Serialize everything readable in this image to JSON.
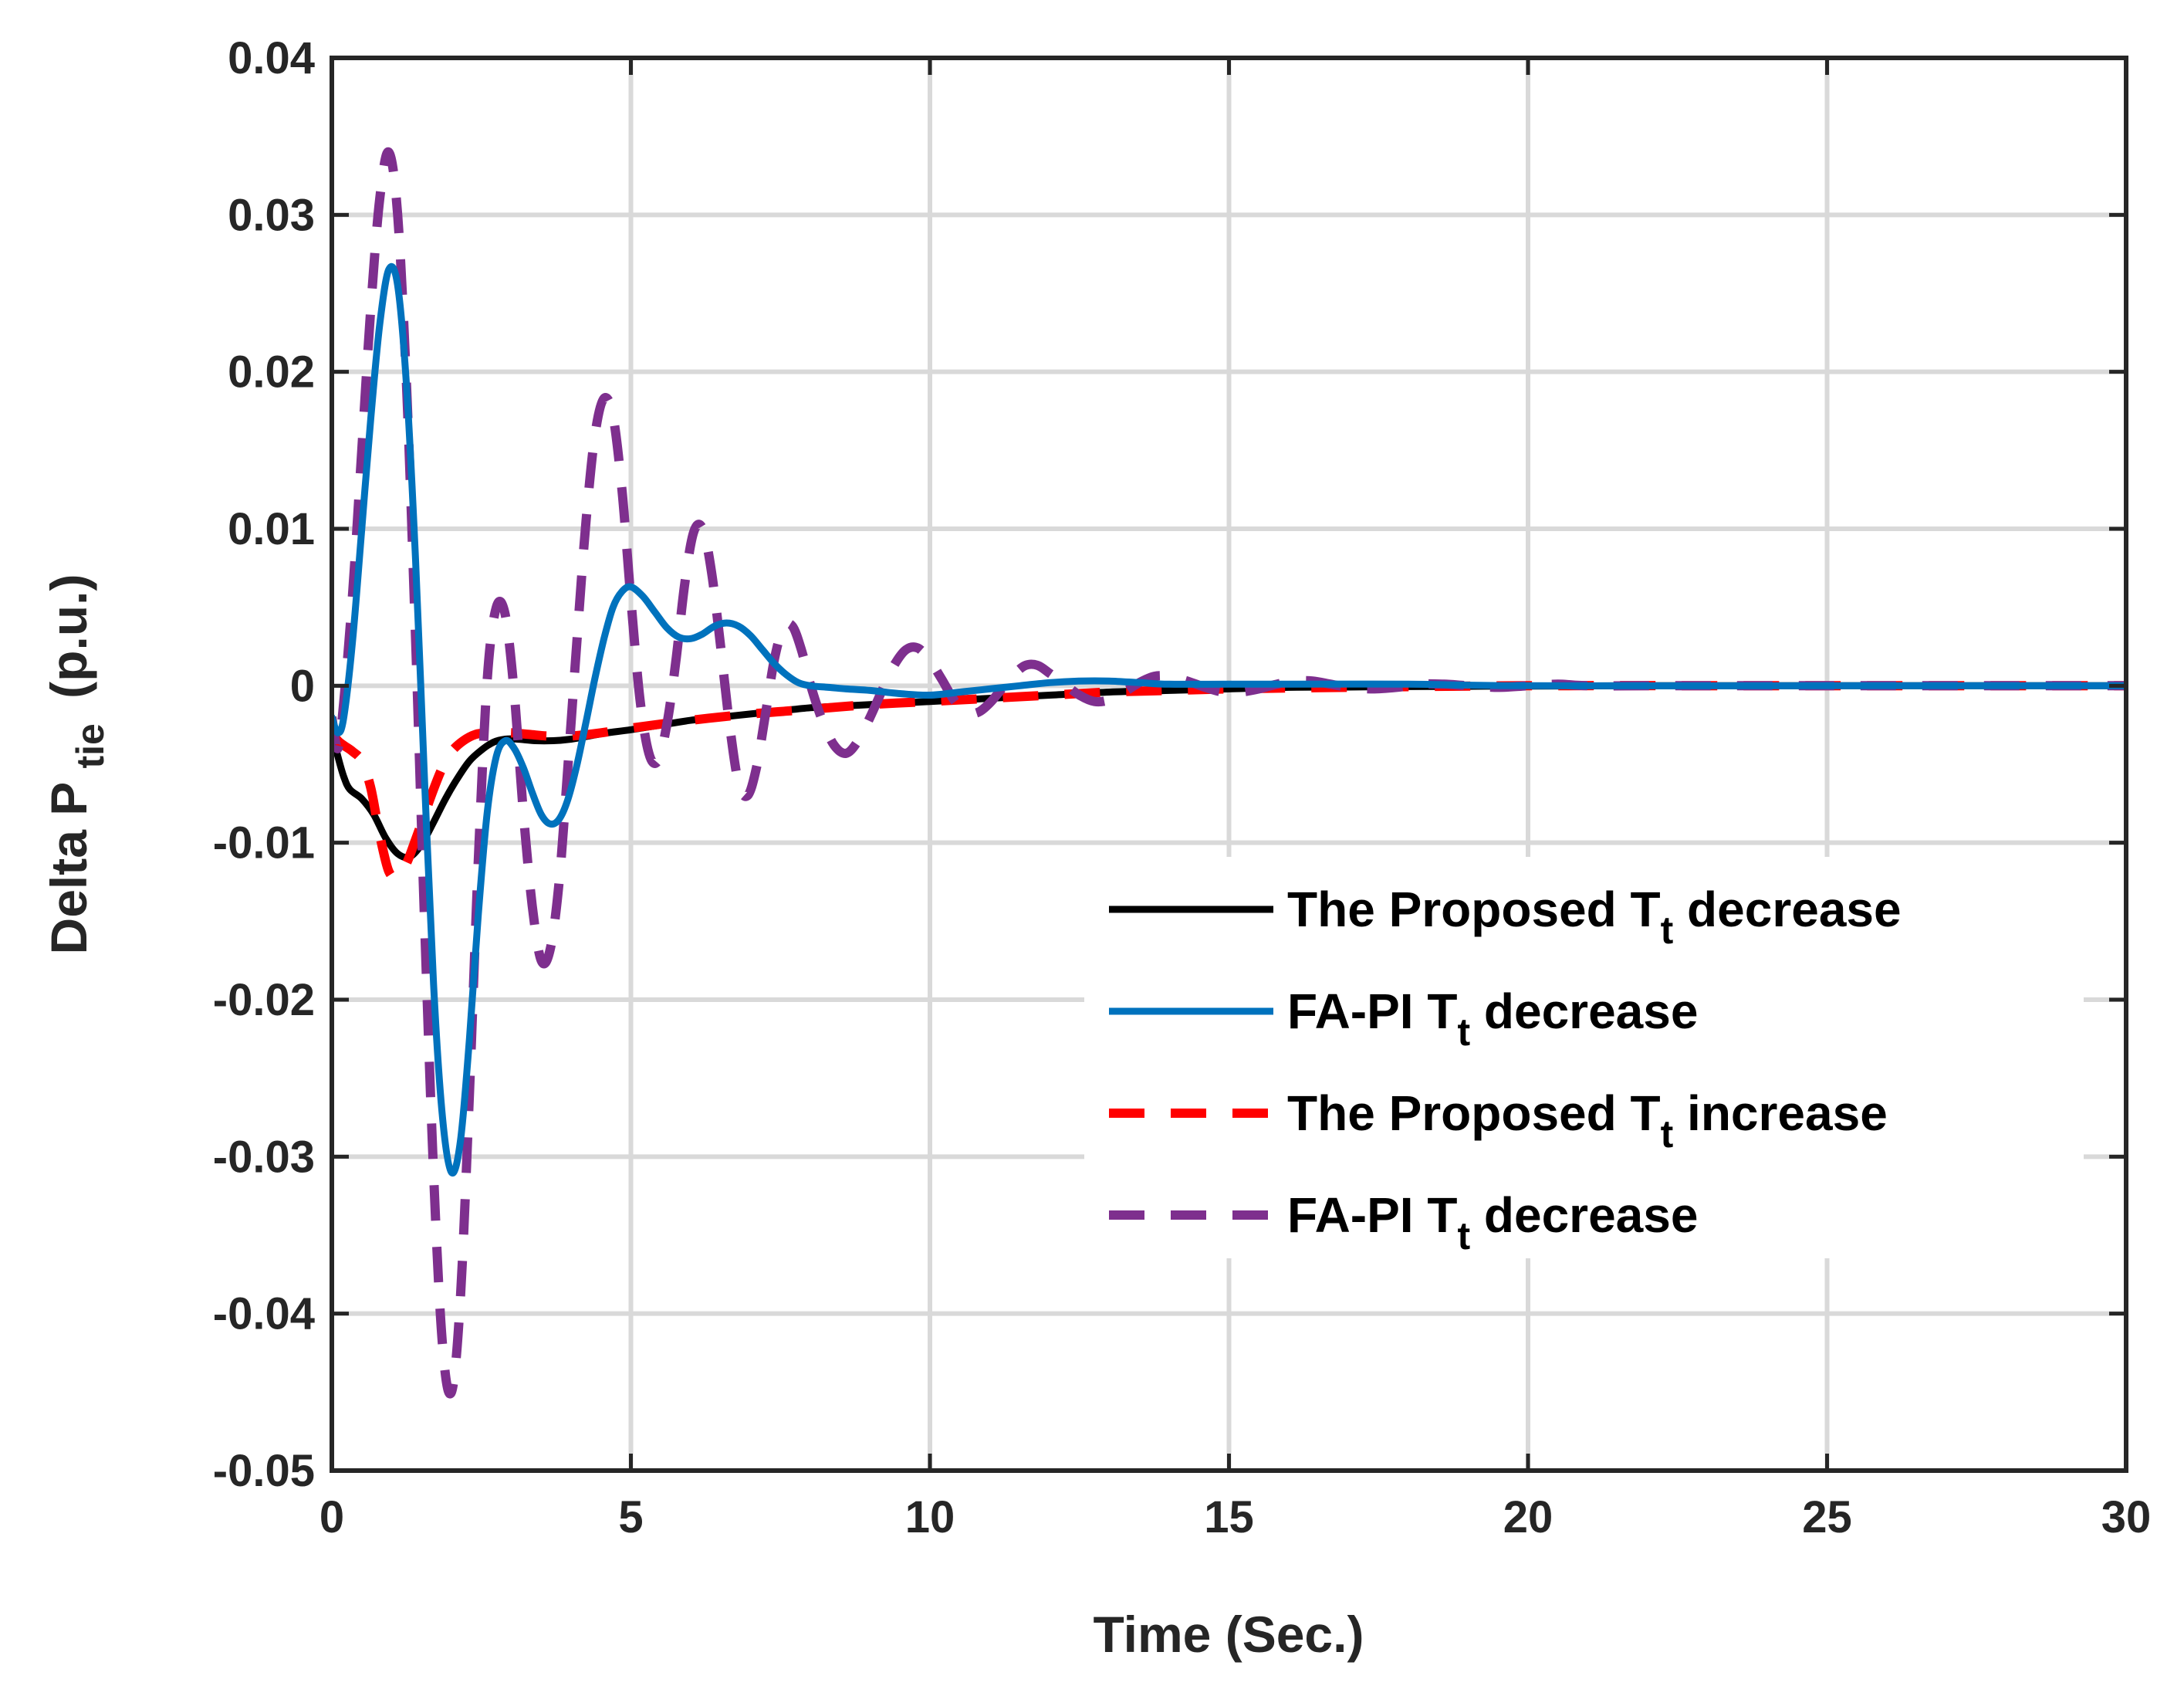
{
  "chart_data": {
    "type": "line",
    "title": "",
    "xlabel": "Time (Sec.)",
    "ylabel": {
      "main": "Delta P",
      "subscript": "tie",
      "suffix": "(p.u.)"
    },
    "xlim": [
      0,
      30
    ],
    "ylim": [
      -0.05,
      0.04
    ],
    "xticks": [
      0,
      5,
      10,
      15,
      20,
      25,
      30
    ],
    "xtick_labels": [
      "0",
      "5",
      "10",
      "15",
      "20",
      "25",
      "30"
    ],
    "yticks": [
      -0.05,
      -0.04,
      -0.03,
      -0.02,
      -0.01,
      0,
      0.01,
      0.02,
      0.03,
      0.04
    ],
    "ytick_labels": [
      "-0.05",
      "-0.04",
      "-0.03",
      "-0.02",
      "-0.01",
      "0",
      "0.01",
      "0.02",
      "0.03",
      "0.04"
    ],
    "grid": true,
    "legend_position": "center-right",
    "series": [
      {
        "name": "The Proposed T_t decrease",
        "legend": {
          "pre": "The Proposed T",
          "sub": "t",
          "post": " decrease"
        },
        "color": "#000000",
        "style": "solid",
        "x": [
          0,
          0.1,
          0.2,
          0.3,
          0.5,
          0.7,
          0.9,
          1.1,
          1.3,
          1.5,
          1.7,
          1.9,
          2.1,
          2.3,
          2.5,
          2.7,
          2.9,
          3.1,
          3.4,
          3.7,
          4.0,
          4.3,
          4.6,
          5,
          5.5,
          6,
          6.5,
          7,
          7.5,
          8,
          8.5,
          9,
          9.5,
          10,
          11,
          12,
          13,
          14,
          15,
          16,
          17,
          18,
          20,
          22,
          25,
          30
        ],
        "y": [
          -0.003,
          -0.0045,
          -0.0058,
          -0.0066,
          -0.0072,
          -0.0082,
          -0.0097,
          -0.0107,
          -0.0109,
          -0.0101,
          -0.0087,
          -0.0072,
          -0.0059,
          -0.0048,
          -0.0041,
          -0.0036,
          -0.0034,
          -0.0034,
          -0.0035,
          -0.0035,
          -0.0034,
          -0.0032,
          -0.003,
          -0.0028,
          -0.0025,
          -0.0022,
          -0.002,
          -0.0018,
          -0.0016,
          -0.0014,
          -0.0013,
          -0.0012,
          -0.0011,
          -0.001,
          -0.0008,
          -0.0006,
          -0.0004,
          -0.0003,
          -0.0002,
          -0.0001,
          -8e-05,
          -5e-05,
          -2e-05,
          0,
          0,
          0
        ]
      },
      {
        "name": "FA-PI T_t decrease",
        "legend": {
          "pre": "FA-PI T",
          "sub": "t",
          "post": " decrease"
        },
        "color": "#0072BD",
        "style": "solid",
        "x": [
          0,
          0.1,
          0.2,
          0.35,
          0.5,
          0.65,
          0.8,
          0.95,
          1.1,
          1.25,
          1.4,
          1.55,
          1.7,
          1.85,
          2.0,
          2.15,
          2.3,
          2.45,
          2.6,
          2.75,
          2.9,
          3.05,
          3.2,
          3.35,
          3.5,
          3.65,
          3.8,
          3.95,
          4.1,
          4.25,
          4.4,
          4.55,
          4.7,
          4.85,
          5.0,
          5.2,
          5.4,
          5.6,
          5.8,
          6.0,
          6.2,
          6.4,
          6.6,
          6.8,
          7.0,
          7.2,
          7.4,
          7.6,
          7.8,
          8.0,
          8.3,
          8.6,
          9.0,
          9.5,
          10,
          10.5,
          11,
          11.5,
          12,
          12.5,
          13,
          13.5,
          14,
          15,
          16,
          18,
          20,
          25,
          30
        ],
        "y": [
          -0.002,
          -0.003,
          -0.002,
          0.003,
          0.01,
          0.017,
          0.023,
          0.0265,
          0.0255,
          0.019,
          0.008,
          -0.006,
          -0.019,
          -0.0275,
          -0.031,
          -0.029,
          -0.0225,
          -0.0145,
          -0.008,
          -0.0045,
          -0.0035,
          -0.004,
          -0.0052,
          -0.0068,
          -0.0082,
          -0.0088,
          -0.0085,
          -0.0072,
          -0.005,
          -0.0023,
          0.0005,
          0.003,
          0.005,
          0.006,
          0.0063,
          0.0057,
          0.0047,
          0.0037,
          0.0031,
          0.003,
          0.0033,
          0.0038,
          0.004,
          0.0038,
          0.0032,
          0.0023,
          0.0014,
          0.0007,
          0.0002,
          0.0,
          -0.0001,
          -0.0002,
          -0.0003,
          -0.0005,
          -0.0006,
          -0.0004,
          -0.0002,
          0.0,
          0.0002,
          0.0003,
          0.0003,
          0.0002,
          0.0001,
          0.0001,
          0.0001,
          0.0001,
          0.0,
          0.0,
          0.0
        ]
      },
      {
        "name": "The Proposed T_t increase",
        "legend": {
          "pre": "The Proposed T",
          "sub": "t",
          "post": " increase"
        },
        "color": "#FF0000",
        "style": "dashed",
        "x": [
          0,
          0.1,
          0.2,
          0.35,
          0.5,
          0.65,
          0.8,
          0.95,
          1.1,
          1.25,
          1.4,
          1.55,
          1.7,
          1.85,
          2.0,
          2.2,
          2.4,
          2.6,
          2.8,
          3.0,
          3.3,
          3.6,
          4.0,
          4.5,
          5,
          6,
          7,
          8,
          9,
          10,
          11,
          12,
          13,
          14,
          15,
          17,
          20,
          25,
          30
        ],
        "y": [
          -0.003,
          -0.0035,
          -0.0038,
          -0.0042,
          -0.0048,
          -0.0065,
          -0.0095,
          -0.0118,
          -0.0122,
          -0.0113,
          -0.0098,
          -0.0082,
          -0.0066,
          -0.0052,
          -0.0042,
          -0.0035,
          -0.0031,
          -0.003,
          -0.003,
          -0.003,
          -0.0031,
          -0.0032,
          -0.0032,
          -0.003,
          -0.0027,
          -0.0022,
          -0.0018,
          -0.0015,
          -0.0012,
          -0.001,
          -0.0008,
          -0.0006,
          -0.0004,
          -0.0003,
          -0.0002,
          -0.0001,
          0.0,
          0.0,
          0.0
        ]
      },
      {
        "name": "FA-PI T_t decrease",
        "legend": {
          "pre": "FA-PI T",
          "sub": "t",
          "post": " decrease"
        },
        "color": "#7E2F8E",
        "style": "dashed",
        "x": [
          0,
          0.1,
          0.2,
          0.35,
          0.5,
          0.65,
          0.8,
          0.95,
          1.1,
          1.25,
          1.4,
          1.55,
          1.7,
          1.85,
          2.0,
          2.15,
          2.3,
          2.45,
          2.6,
          2.75,
          2.9,
          3.05,
          3.2,
          3.35,
          3.5,
          3.65,
          3.8,
          3.95,
          4.1,
          4.25,
          4.4,
          4.55,
          4.7,
          4.85,
          5.0,
          5.15,
          5.3,
          5.45,
          5.6,
          5.75,
          5.9,
          6.05,
          6.2,
          6.35,
          6.5,
          6.65,
          6.8,
          6.95,
          7.1,
          7.25,
          7.4,
          7.55,
          7.7,
          7.85,
          8.0,
          8.2,
          8.4,
          8.6,
          8.8,
          9.0,
          9.2,
          9.4,
          9.6,
          9.8,
          10.0,
          10.2,
          10.4,
          10.6,
          10.8,
          11.0,
          11.2,
          11.4,
          11.6,
          11.8,
          12.0,
          12.25,
          12.5,
          12.75,
          13.0,
          13.25,
          13.5,
          13.75,
          14.0,
          14.3,
          14.6,
          14.9,
          15.2,
          15.5,
          15.8,
          16.1,
          16.4,
          16.7,
          17.0,
          17.4,
          17.8,
          18.2,
          18.6,
          19.0,
          19.5,
          20.0,
          20.5,
          21.0,
          22.0,
          23.0,
          24.0,
          25.0,
          26.0,
          27.0,
          28.0,
          29.0,
          30.0
        ],
        "y": [
          -0.002,
          -0.004,
          -0.001,
          0.006,
          0.015,
          0.024,
          0.031,
          0.034,
          0.03,
          0.019,
          0.003,
          -0.015,
          -0.031,
          -0.042,
          -0.045,
          -0.039,
          -0.026,
          -0.011,
          0.0005,
          0.005,
          0.0045,
          -0.0005,
          -0.008,
          -0.014,
          -0.0175,
          -0.0168,
          -0.0125,
          -0.005,
          0.003,
          0.0105,
          0.016,
          0.0183,
          0.0172,
          0.0125,
          0.0055,
          -0.0008,
          -0.0043,
          -0.0048,
          -0.0025,
          0.0015,
          0.0065,
          0.0098,
          0.01,
          0.0072,
          0.0025,
          -0.0025,
          -0.0062,
          -0.007,
          -0.0052,
          -0.0018,
          0.0017,
          0.0037,
          0.0038,
          0.0023,
          0.0001,
          -0.0022,
          -0.0038,
          -0.0043,
          -0.0035,
          -0.002,
          -0.0003,
          0.0013,
          0.0023,
          0.0024,
          0.0016,
          0.0004,
          -0.0009,
          -0.0017,
          -0.0017,
          -0.0011,
          -0.0002,
          0.0007,
          0.0013,
          0.0013,
          0.0008,
          0.0001,
          -0.0006,
          -0.001,
          -0.0009,
          -0.0004,
          0.0002,
          0.0006,
          0.0006,
          0.0003,
          -0.0001,
          -0.0004,
          -0.0004,
          -0.0002,
          0.0001,
          0.0003,
          0.0003,
          0.0001,
          -0.0001,
          -0.0002,
          -0.0001,
          0.0001,
          0.0001,
          0.0,
          -0.0001,
          0.0,
          0.0001,
          0.0,
          0.0,
          0.0,
          0.0,
          0.0,
          0.0,
          0.0,
          0.0,
          0.0,
          0.0
        ]
      }
    ]
  }
}
